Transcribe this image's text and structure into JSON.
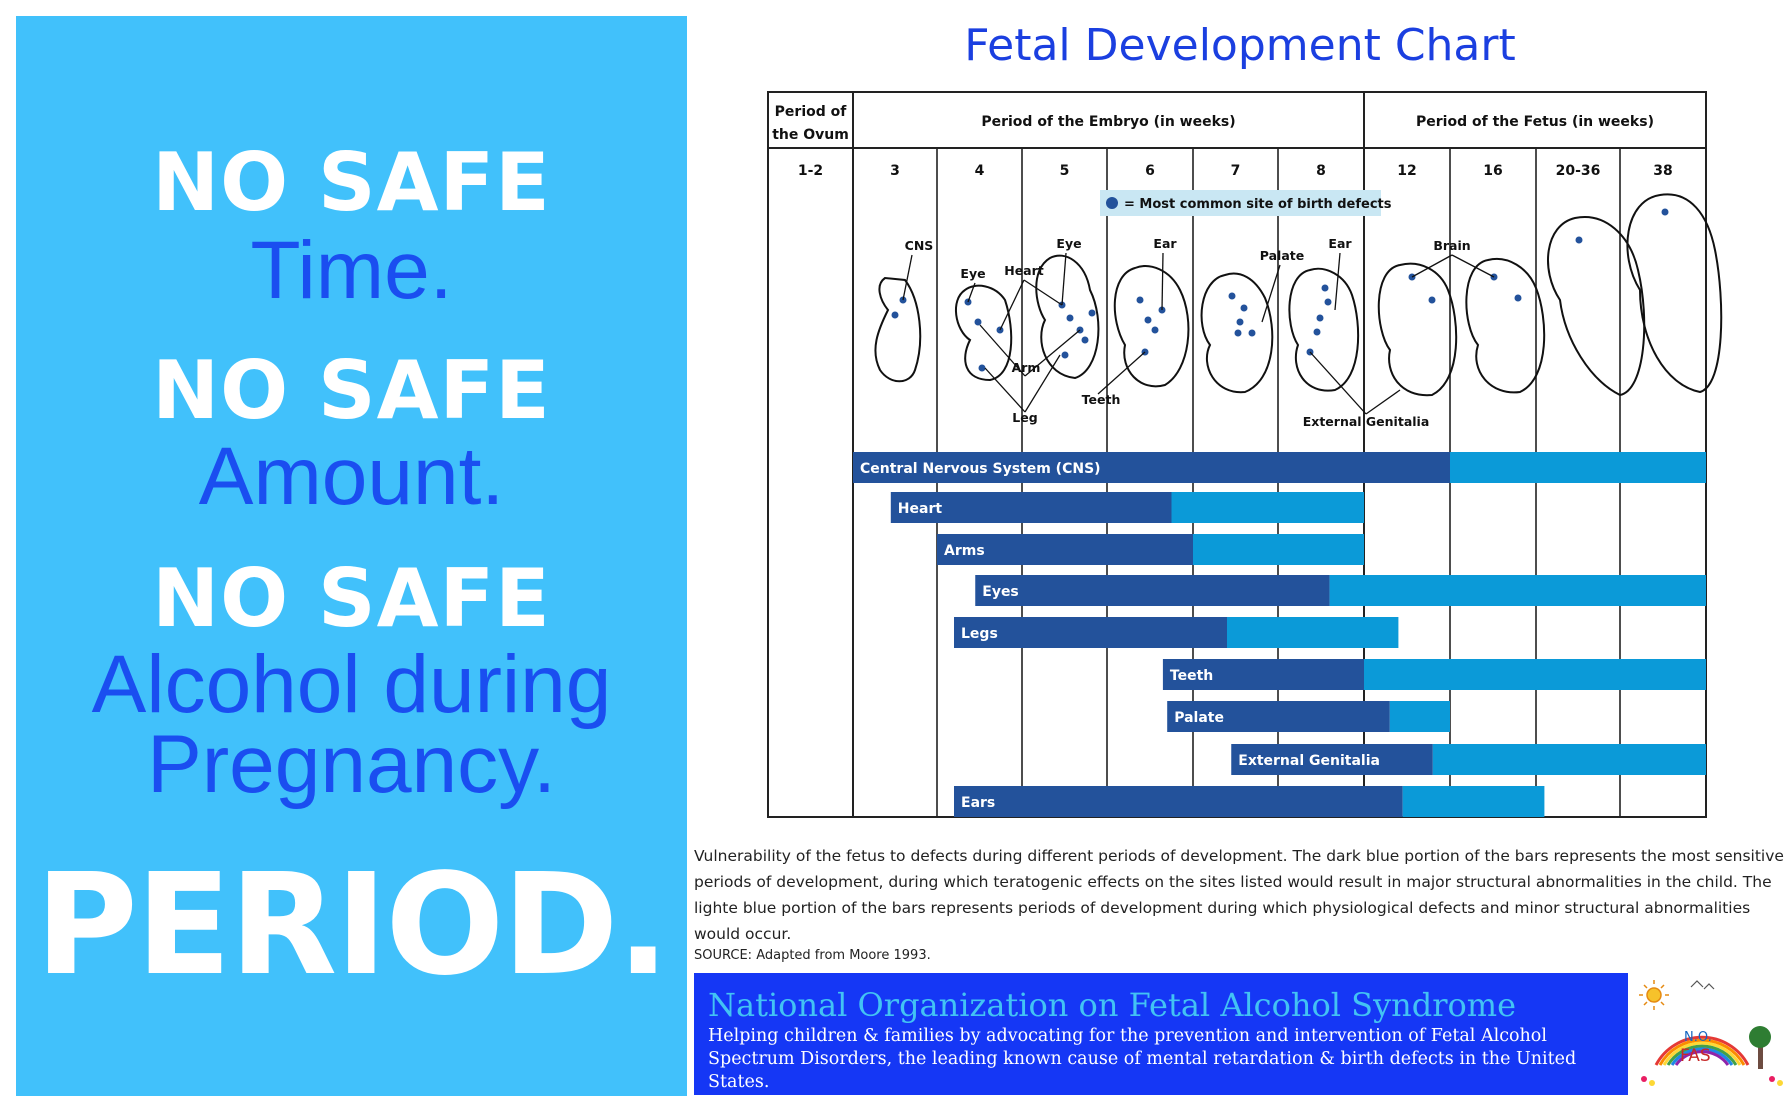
{
  "poster": {
    "line1_no_safe": "NO SAFE",
    "line1_sub": "Time.",
    "line2_no_safe": "NO SAFE",
    "line2_sub": "Amount.",
    "line3_no_safe": "NO SAFE",
    "line3_sub_a": "Alcohol during",
    "line3_sub_b": "Pregnancy.",
    "period": "PERIOD."
  },
  "chart": {
    "title": "Fetal Development Chart",
    "header_ovum_a": "Period of",
    "header_ovum_b": "the Ovum",
    "header_embryo": "Period of the Embryo (in weeks)",
    "header_fetus": "Period of the Fetus (in weeks)",
    "weeks": [
      "1-2",
      "3",
      "4",
      "5",
      "6",
      "7",
      "8",
      "12",
      "16",
      "20-36",
      "38"
    ],
    "legend": "= Most common site of birth defects",
    "annotations": {
      "cns": "CNS",
      "eye1": "Eye",
      "heart": "Heart",
      "eye2": "Eye",
      "ear1": "Ear",
      "palate": "Palate",
      "ear2": "Ear",
      "brain": "Brain",
      "arm": "Arm",
      "leg": "Leg",
      "teeth": "Teeth",
      "external_genitalia": "External Genitalia"
    },
    "colors": {
      "dark": "#23529b",
      "light": "#0b9ad8",
      "grid": "#222222",
      "legend_bg": "#c9e7f3"
    }
  },
  "chart_data": {
    "type": "bar",
    "orientation": "horizontal",
    "x_axis_categories": [
      "1-2",
      "3",
      "4",
      "5",
      "6",
      "7",
      "8",
      "12",
      "16",
      "20-36",
      "38"
    ],
    "x_unit": "week column (0 = start of 1-2, 11 = end of 38)",
    "series": [
      {
        "name": "Central Nervous System (CNS)",
        "dark": [
          1.0,
          8.0
        ],
        "light": [
          8.0,
          11.0
        ]
      },
      {
        "name": "Heart",
        "dark": [
          1.45,
          4.75
        ],
        "light": [
          4.75,
          7.0
        ]
      },
      {
        "name": "Arms",
        "dark": [
          2.0,
          5.0
        ],
        "light": [
          5.0,
          7.0
        ]
      },
      {
        "name": "Eyes",
        "dark": [
          2.45,
          6.6
        ],
        "light": [
          6.6,
          11.0
        ]
      },
      {
        "name": "Legs",
        "dark": [
          2.2,
          5.4
        ],
        "light": [
          5.4,
          7.4
        ]
      },
      {
        "name": "Teeth",
        "dark": [
          4.65,
          7.0
        ],
        "light": [
          7.0,
          11.0
        ]
      },
      {
        "name": "Palate",
        "dark": [
          4.7,
          7.3
        ],
        "light": [
          7.3,
          8.0
        ]
      },
      {
        "name": "External Genitalia",
        "dark": [
          5.45,
          7.8
        ],
        "light": [
          7.8,
          11.0
        ]
      },
      {
        "name": "Ears",
        "dark": [
          2.2,
          7.45
        ],
        "light": [
          7.45,
          9.1
        ]
      }
    ]
  },
  "caption": "Vulnerability of the fetus to defects during different periods of development. The dark blue portion of the bars represents the most sensitive periods of development, during which teratogenic effects on the sites listed would result in major structural abnormalities in the child. The lighte blue portion of the bars represents periods of development during which physiological defects and minor structural abnormalities would occur.",
  "source": "SOURCE: Adapted from Moore 1993.",
  "banner": {
    "title": "National Organization on Fetal Alcohol Syndrome",
    "text": "Helping children & families by advocating for the prevention and intervention of Fetal Alcohol Spectrum Disorders, the leading known cause of mental retardation & birth defects in the United States."
  },
  "logo": {
    "text": "N.O. FAS"
  }
}
